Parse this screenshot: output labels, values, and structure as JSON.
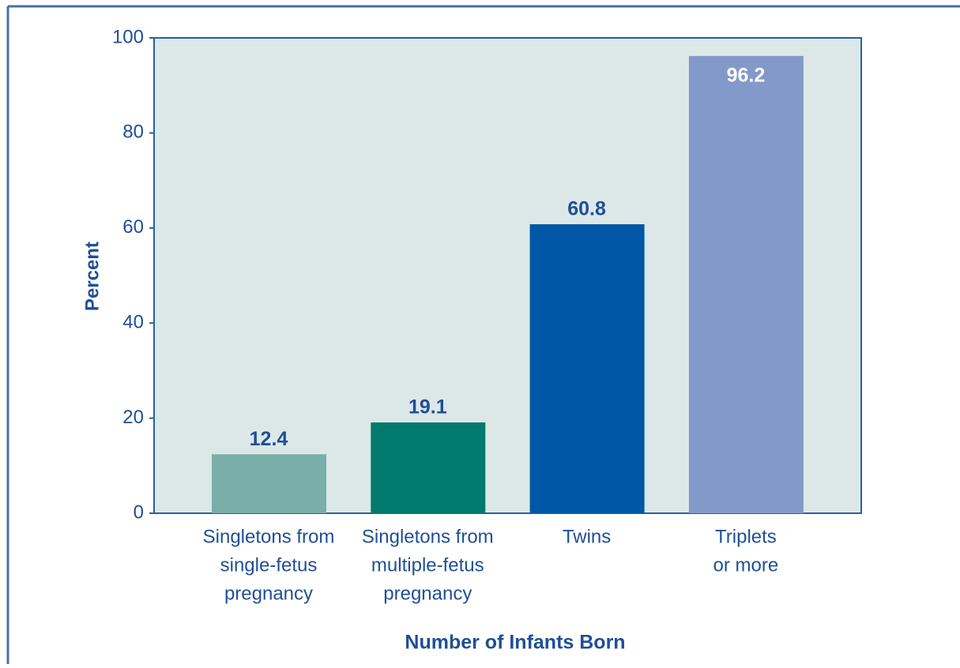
{
  "chart_data": {
    "type": "bar",
    "categories": [
      [
        "Singletons from",
        "single-fetus",
        "pregnancy"
      ],
      [
        "Singletons from",
        "multiple-fetus",
        "pregnancy"
      ],
      [
        "Twins"
      ],
      [
        "Triplets",
        "or more"
      ]
    ],
    "values": [
      12.4,
      19.1,
      60.8,
      96.2
    ],
    "colors": [
      "#7aaea8",
      "#007a6c",
      "#0057a6",
      "#8399c9"
    ],
    "y_label": "Percent",
    "x_label": "Number of Infants Born",
    "ylim": [
      0,
      100
    ],
    "yticks": [
      0,
      20,
      40,
      60,
      80,
      100
    ]
  }
}
